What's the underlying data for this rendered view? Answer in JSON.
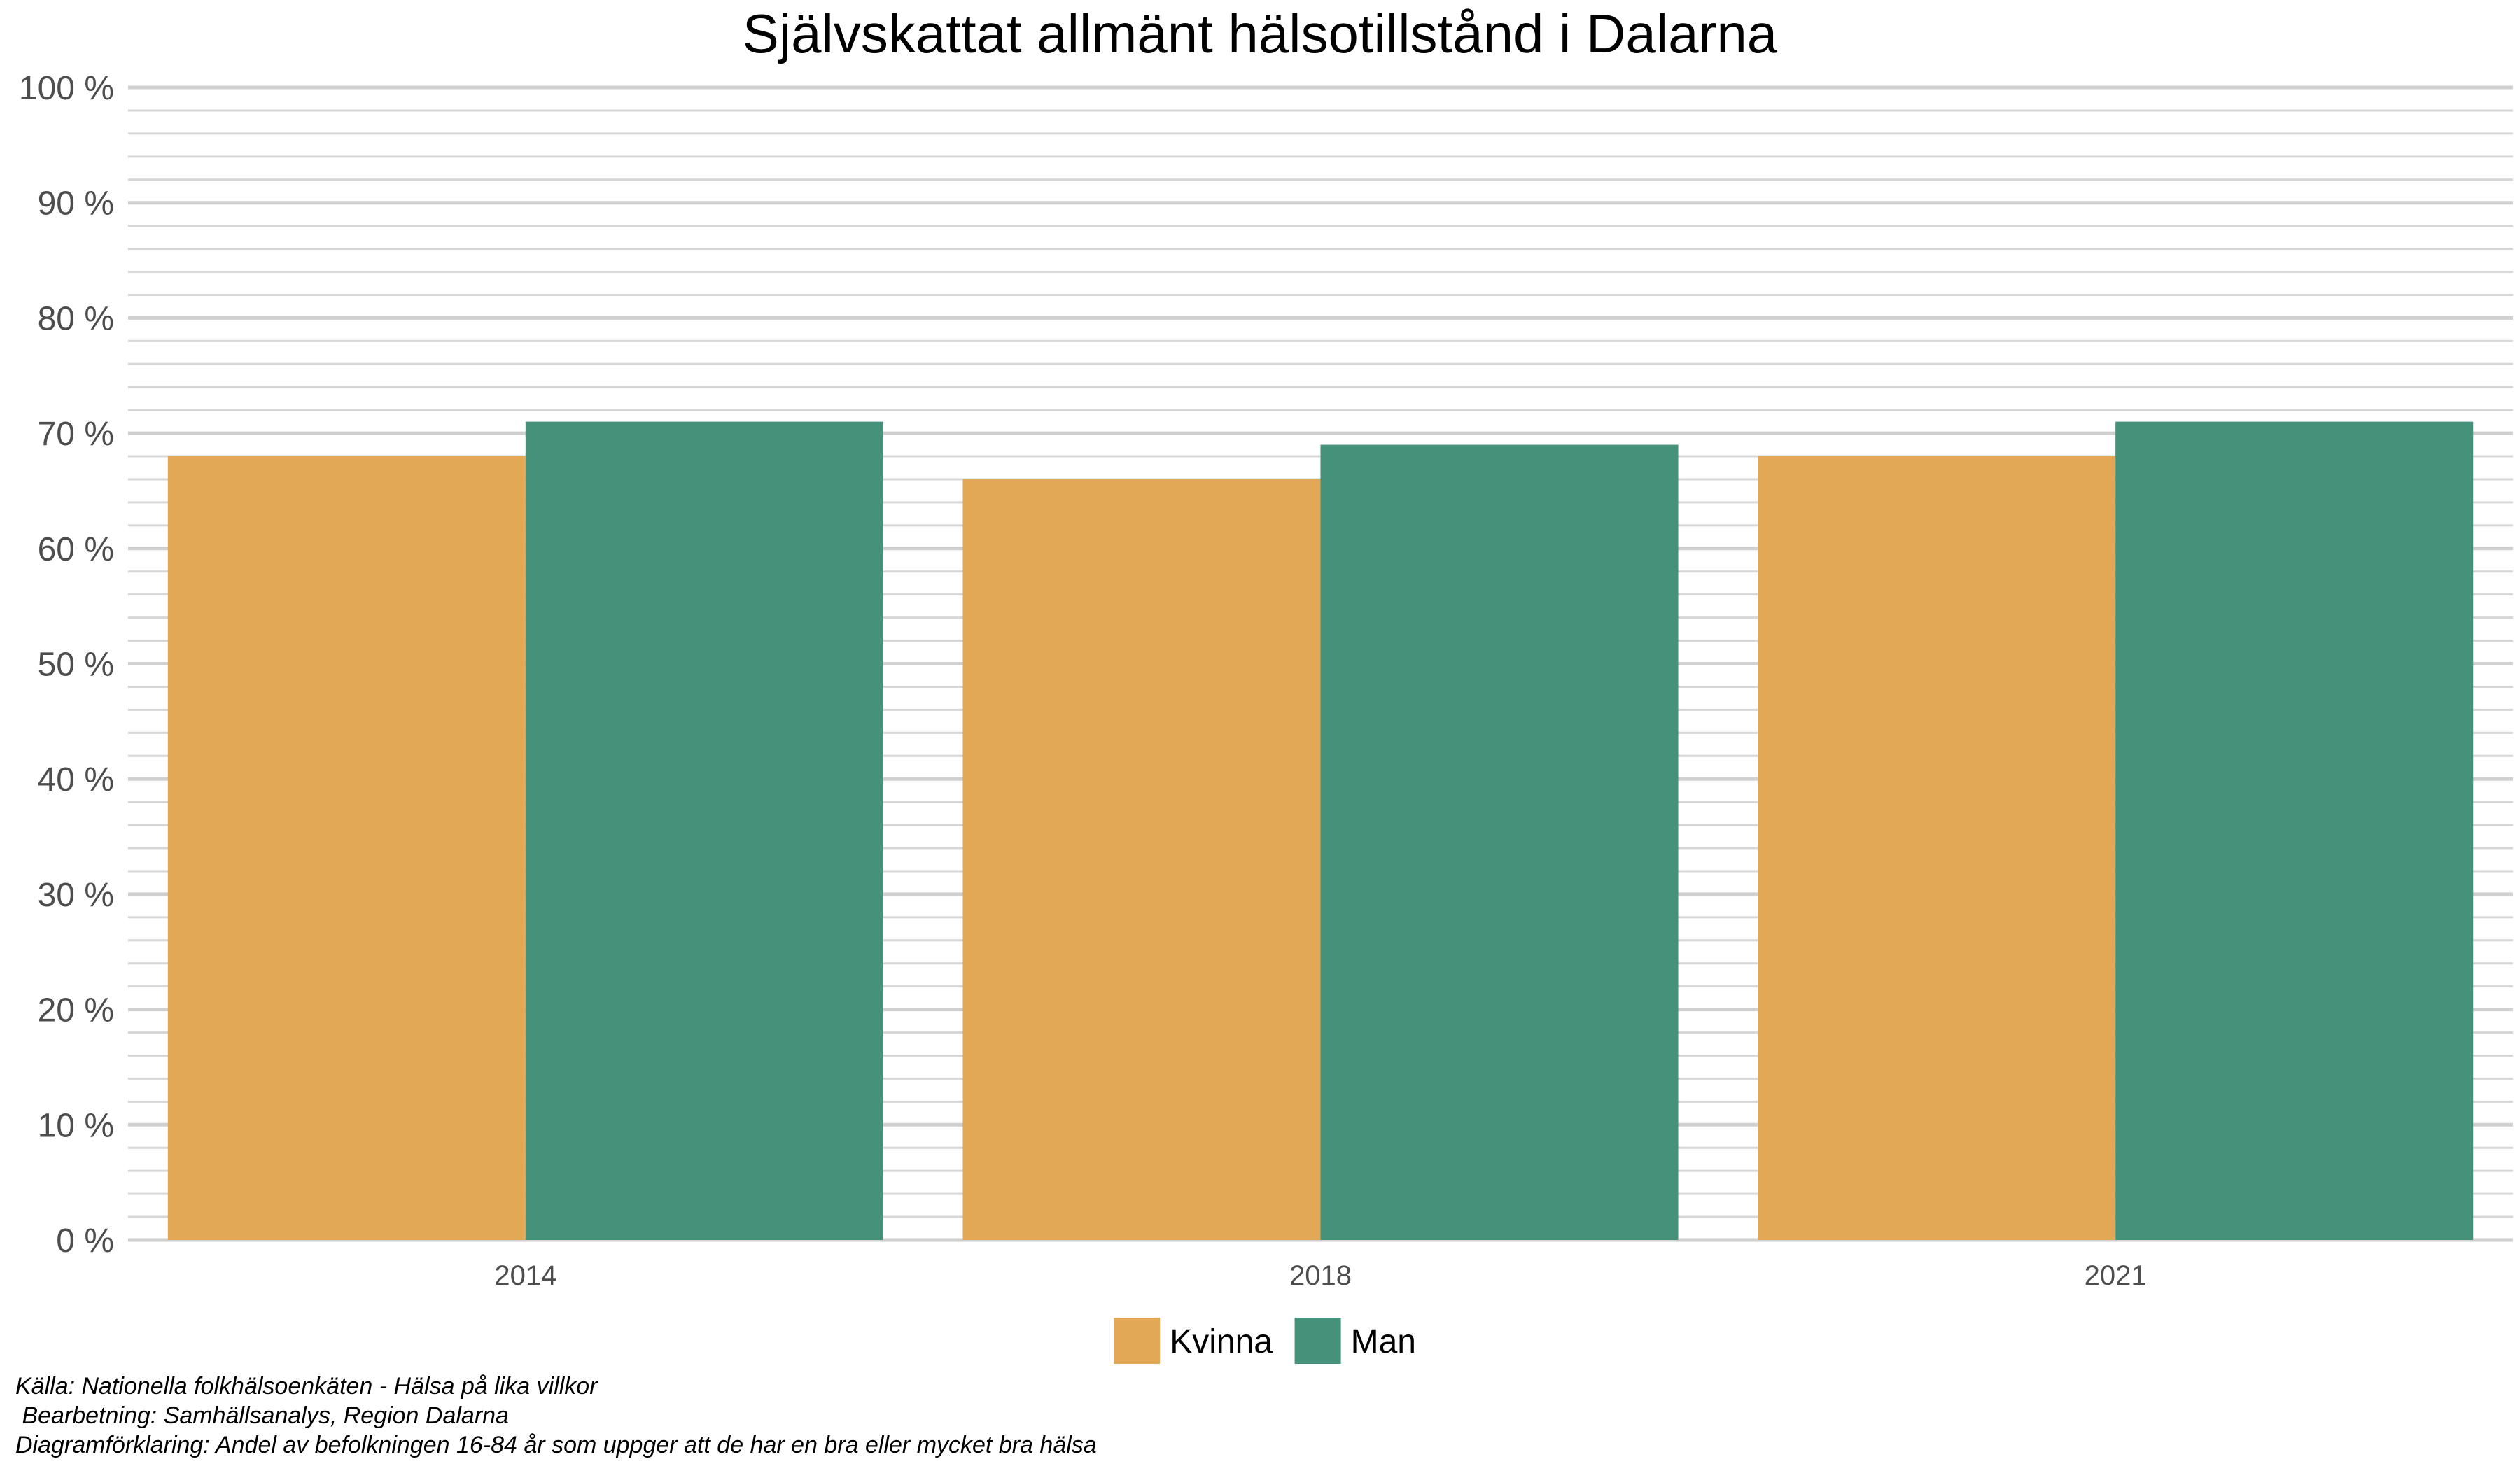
{
  "chart_data": {
    "type": "bar",
    "title": "Självskattat allmänt hälsotillstånd i Dalarna",
    "xlabel": "",
    "ylabel": "",
    "categories": [
      "2014",
      "2018",
      "2021"
    ],
    "series": [
      {
        "name": "Kvinna",
        "color": "#E2A855",
        "values": [
          68,
          66,
          68
        ]
      },
      {
        "name": "Man",
        "color": "#46917A",
        "values": [
          71,
          69,
          71
        ]
      }
    ],
    "ylim": [
      0,
      100
    ],
    "yticks": [
      0,
      10,
      20,
      30,
      40,
      50,
      60,
      70,
      80,
      90,
      100
    ],
    "ytick_labels": [
      "0 %",
      "10 %",
      "20 %",
      "30 %",
      "40 %",
      "50 %",
      "60 %",
      "70 %",
      "80 %",
      "90 %",
      "100 %"
    ],
    "grid": true,
    "legend_position": "bottom"
  },
  "notes": {
    "source": "Källa: Nationella folkhälsoenkäten - Hälsa på lika villkor",
    "processing": " Bearbetning: Samhällsanalys, Region Dalarna",
    "explanation": "Diagramförklaring: Andel av befolkningen 16-84 år som uppger att de har en bra eller mycket bra hälsa"
  }
}
